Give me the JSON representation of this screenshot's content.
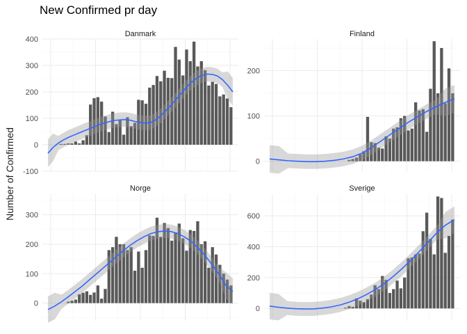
{
  "title": "New Confirmed pr day",
  "ylabel": "Number of Confirmed",
  "colors": {
    "bar": "#595959",
    "smooth": "#3366ff",
    "band": "#999999",
    "grid": "#ebebeb"
  },
  "chart_data": [
    {
      "type": "bar",
      "panel": "Danmark",
      "x": [
        1,
        2,
        3,
        4,
        5,
        6,
        7,
        8,
        9,
        10,
        11,
        12,
        13,
        14,
        15,
        16,
        17,
        18,
        19,
        20,
        21,
        22,
        23,
        24,
        25,
        26,
        27,
        28,
        29,
        30,
        31,
        32,
        33,
        34,
        35,
        36,
        37,
        38,
        39,
        40,
        41,
        42,
        43,
        44,
        45,
        46,
        47,
        48,
        49,
        50
      ],
      "values": [
        0,
        0,
        0,
        3,
        3,
        5,
        5,
        12,
        5,
        17,
        36,
        152,
        176,
        180,
        163,
        107,
        48,
        125,
        78,
        92,
        38,
        104,
        70,
        83,
        170,
        168,
        155,
        216,
        226,
        260,
        240,
        280,
        253,
        252,
        370,
        322,
        262,
        360,
        316,
        390,
        296,
        316,
        282,
        224,
        238,
        230,
        183,
        190,
        175,
        142
      ],
      "smooth": [
        -32,
        -10,
        6,
        18,
        28,
        36,
        44,
        52,
        60,
        68,
        76,
        82,
        88,
        92,
        94,
        95,
        93,
        88,
        84,
        82,
        84,
        95,
        110,
        130,
        150,
        172,
        195,
        218,
        237,
        252,
        262,
        267,
        266,
        260,
        246,
        225,
        200
      ],
      "ylim": [
        -100,
        400
      ],
      "yticks": [
        -100,
        0,
        100,
        200,
        300,
        400
      ]
    },
    {
      "type": "bar",
      "panel": "Finland",
      "x": [
        1,
        2,
        3,
        4,
        5,
        6,
        7,
        8,
        9,
        10,
        11,
        12,
        13,
        14,
        15,
        16,
        17,
        18,
        19,
        20,
        21,
        22,
        23,
        24,
        25,
        26,
        27,
        28,
        29,
        30,
        31,
        32,
        33,
        34,
        35,
        36,
        37,
        38,
        39,
        40,
        41,
        42,
        43,
        44,
        45,
        46,
        47,
        48,
        49,
        50
      ],
      "values": [
        0,
        0,
        0,
        0,
        0,
        0,
        0,
        0,
        0,
        0,
        0,
        0,
        0,
        0,
        0,
        0,
        0,
        0,
        0,
        0,
        0,
        3,
        5,
        8,
        15,
        22,
        98,
        42,
        40,
        30,
        28,
        55,
        50,
        72,
        75,
        95,
        100,
        68,
        72,
        130,
        112,
        115,
        65,
        160,
        265,
        150,
        250,
        128,
        205,
        150
      ],
      "smooth": [
        5,
        3,
        1,
        0,
        -1,
        -1,
        0,
        2,
        5,
        10,
        18,
        30,
        44,
        58,
        72,
        86,
        98,
        110,
        120,
        130,
        138
      ],
      "ylim": [
        -22,
        270
      ],
      "yticks": [
        0,
        100,
        200
      ]
    },
    {
      "type": "bar",
      "panel": "Norge",
      "x": [
        1,
        2,
        3,
        4,
        5,
        6,
        7,
        8,
        9,
        10,
        11,
        12,
        13,
        14,
        15,
        16,
        17,
        18,
        19,
        20,
        21,
        22,
        23,
        24,
        25,
        26,
        27,
        28,
        29,
        30,
        31,
        32,
        33,
        34,
        35,
        36,
        37,
        38,
        39,
        40,
        41,
        42,
        43,
        44,
        45,
        46,
        47,
        48,
        49,
        50
      ],
      "values": [
        0,
        0,
        0,
        0,
        0,
        5,
        8,
        12,
        30,
        35,
        40,
        28,
        36,
        60,
        15,
        48,
        180,
        190,
        225,
        200,
        200,
        180,
        190,
        110,
        175,
        120,
        180,
        230,
        228,
        290,
        225,
        272,
        255,
        212,
        240,
        270,
        220,
        178,
        248,
        245,
        278,
        200,
        210,
        120,
        190,
        165,
        130,
        100,
        80,
        60
      ],
      "smooth": [
        -22,
        -10,
        5,
        22,
        40,
        58,
        78,
        98,
        118,
        138,
        158,
        178,
        196,
        212,
        225,
        236,
        242,
        245,
        243,
        236,
        224,
        208,
        186,
        160,
        130,
        98,
        60,
        40
      ],
      "ylim": [
        -60,
        370
      ],
      "yticks": [
        0,
        100,
        200,
        300
      ]
    },
    {
      "type": "bar",
      "panel": "Sverige",
      "x": [
        1,
        2,
        3,
        4,
        5,
        6,
        7,
        8,
        9,
        10,
        11,
        12,
        13,
        14,
        15,
        16,
        17,
        18,
        19,
        20,
        21,
        22,
        23,
        24,
        25,
        26,
        27,
        28,
        29,
        30,
        31,
        32,
        33,
        34,
        35,
        36,
        37,
        38,
        39,
        40,
        41,
        42,
        43,
        44,
        45,
        46,
        47,
        48,
        49,
        50
      ],
      "values": [
        0,
        0,
        0,
        0,
        0,
        0,
        0,
        0,
        0,
        0,
        0,
        0,
        0,
        0,
        0,
        0,
        0,
        0,
        0,
        0,
        5,
        15,
        10,
        65,
        50,
        40,
        60,
        90,
        150,
        125,
        210,
        185,
        100,
        125,
        180,
        130,
        200,
        325,
        330,
        350,
        355,
        500,
        620,
        450,
        350,
        725,
        715,
        360,
        470,
        575
      ],
      "smooth": [
        15,
        8,
        2,
        -2,
        -4,
        -3,
        2,
        10,
        22,
        40,
        62,
        90,
        122,
        160,
        205,
        255,
        310,
        368,
        428,
        490,
        540,
        575
      ],
      "ylim": [
        -80,
        740
      ],
      "yticks": [
        0,
        200,
        400,
        600
      ]
    }
  ]
}
